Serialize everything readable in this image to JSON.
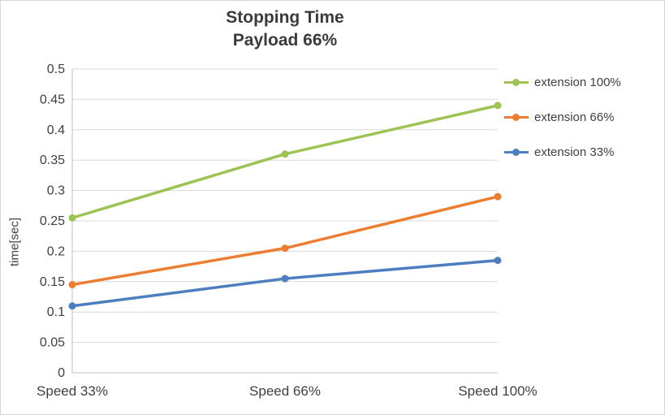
{
  "chart_data": {
    "type": "line",
    "title_line1": "Stopping Time",
    "title_line2": "Payload 66%",
    "ylabel": "time[sec]",
    "xlabel": "",
    "categories": [
      "Speed 33%",
      "Speed 66%",
      "Speed 100%"
    ],
    "series": [
      {
        "name": "extension 100%",
        "color": "#9CC353",
        "values": [
          0.255,
          0.36,
          0.44
        ]
      },
      {
        "name": "extension 66%",
        "color": "#ED7D31",
        "values": [
          0.145,
          0.205,
          0.29
        ]
      },
      {
        "name": "extension 33%",
        "color": "#4D7EBF",
        "values": [
          0.11,
          0.155,
          0.185
        ]
      }
    ],
    "ylim": [
      0,
      0.5
    ],
    "ytick_step": 0.05,
    "ytick_labels": [
      "0",
      "0.05",
      "0.1",
      "0.15",
      "0.2",
      "0.25",
      "0.3",
      "0.35",
      "0.4",
      "0.45",
      "0.5"
    ],
    "grid": "horizontal",
    "legend_position": "right",
    "colors": {
      "gridline": "#d9d9d9",
      "axis_line": "#bfbfbf",
      "axis_text": "#404040",
      "title_text": "#3b3b3b",
      "background": "#ffffff",
      "frame_border": "#d6d6d6"
    }
  }
}
